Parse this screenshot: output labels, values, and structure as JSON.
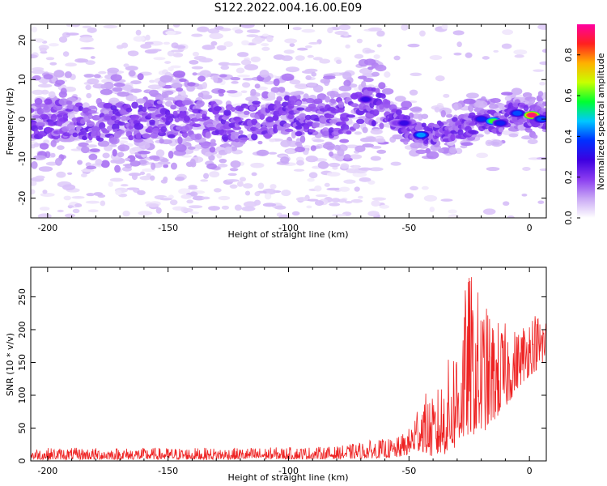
{
  "figure": {
    "title": "S122.2022.004.16.00.E09"
  },
  "chart_data": [
    {
      "type": "heatmap",
      "xlabel": "Height of straight line (km)",
      "ylabel": "Frequency (Hz)",
      "xlim": [
        -207,
        7
      ],
      "ylim": [
        -25,
        24
      ],
      "x_ticks": [
        -200,
        -150,
        -100,
        -50,
        0
      ],
      "y_ticks": [
        -20,
        -10,
        0,
        10,
        20
      ],
      "grid": false,
      "z_range": [
        0,
        0.95
      ],
      "colorbar": {
        "label": "Normalized spectral amplitude",
        "range": [
          0,
          0.95
        ],
        "ticks": [
          0.0,
          0.2,
          0.4,
          0.6,
          0.8
        ],
        "colormap": [
          "#ffffff",
          "#c9a8f5",
          "#8a3cf0",
          "#3c00e0",
          "#0030ff",
          "#00c8ff",
          "#00ff30",
          "#c8ff00",
          "#ffb000",
          "#ff2020",
          "#ff00a0"
        ]
      },
      "ridge": [
        {
          "x": -205,
          "y": 0
        },
        {
          "x": -190,
          "y": 0
        },
        {
          "x": -175,
          "y": -1
        },
        {
          "x": -160,
          "y": 0
        },
        {
          "x": -140,
          "y": 0
        },
        {
          "x": -120,
          "y": -1
        },
        {
          "x": -100,
          "y": 1
        },
        {
          "x": -85,
          "y": 0
        },
        {
          "x": -75,
          "y": 1
        },
        {
          "x": -68,
          "y": 4
        },
        {
          "x": -62,
          "y": 3
        },
        {
          "x": -55,
          "y": 0
        },
        {
          "x": -48,
          "y": -3
        },
        {
          "x": -42,
          "y": -4
        },
        {
          "x": -35,
          "y": -3
        },
        {
          "x": -28,
          "y": -2
        },
        {
          "x": -22,
          "y": -1
        },
        {
          "x": -18,
          "y": 0
        },
        {
          "x": -12,
          "y": -1
        },
        {
          "x": -8,
          "y": 2
        },
        {
          "x": -2,
          "y": 1
        },
        {
          "x": 3,
          "y": 1
        },
        {
          "x": 7,
          "y": 0
        }
      ],
      "peaks": [
        {
          "x": -68,
          "y": 5,
          "amplitude": 0.3
        },
        {
          "x": -55,
          "y": -1,
          "amplitude": 0.2
        },
        {
          "x": -52,
          "y": -1,
          "amplitude": 0.3
        },
        {
          "x": -45,
          "y": -4,
          "amplitude": 0.45
        },
        {
          "x": -20,
          "y": 0,
          "amplitude": 0.35
        },
        {
          "x": -15,
          "y": -0.5,
          "amplitude": 0.6
        },
        {
          "x": -12,
          "y": -1,
          "amplitude": 0.35
        },
        {
          "x": -5,
          "y": 1.5,
          "amplitude": 0.4
        },
        {
          "x": 1,
          "y": 1,
          "amplitude": 0.93
        },
        {
          "x": 5,
          "y": 0,
          "amplitude": 0.4
        }
      ]
    },
    {
      "type": "line",
      "xlabel": "Height of straight line (km)",
      "ylabel": "SNR (10 * v/v)",
      "xlim": [
        -207,
        7
      ],
      "ylim": [
        0,
        295
      ],
      "x_ticks": [
        -200,
        -150,
        -100,
        -50,
        0
      ],
      "y_ticks": [
        0,
        50,
        100,
        150,
        200,
        250
      ],
      "grid": false,
      "series": [
        {
          "color": "#ee2222",
          "envelope": [
            {
              "x": -207,
              "low": 2,
              "high": 20
            },
            {
              "x": -120,
              "low": 2,
              "high": 20
            },
            {
              "x": -80,
              "low": 3,
              "high": 22
            },
            {
              "x": -65,
              "low": 4,
              "high": 32
            },
            {
              "x": -55,
              "low": 5,
              "high": 35
            },
            {
              "x": -50,
              "low": 10,
              "high": 50
            },
            {
              "x": -45,
              "low": 15,
              "high": 110
            },
            {
              "x": -40,
              "low": 5,
              "high": 95
            },
            {
              "x": -35,
              "low": 10,
              "high": 140
            },
            {
              "x": -30,
              "low": 20,
              "high": 200
            },
            {
              "x": -25,
              "low": 40,
              "high": 295
            },
            {
              "x": -20,
              "low": 40,
              "high": 250
            },
            {
              "x": -15,
              "low": 60,
              "high": 220
            },
            {
              "x": -10,
              "low": 80,
              "high": 210
            },
            {
              "x": -5,
              "low": 110,
              "high": 200
            },
            {
              "x": 0,
              "low": 130,
              "high": 230
            },
            {
              "x": 7,
              "low": 150,
              "high": 225
            }
          ]
        }
      ]
    }
  ]
}
